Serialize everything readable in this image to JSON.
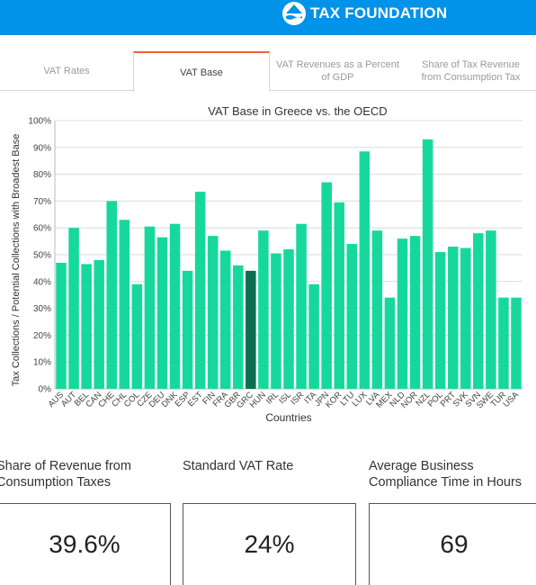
{
  "header": {
    "brand_name": "TAX FOUNDATION",
    "logo_icon": "tax-foundation-logo-icon",
    "background_color": "#0093e9"
  },
  "tabs": [
    {
      "label": "VAT Rates",
      "active": false
    },
    {
      "label": "VAT Base",
      "active": true
    },
    {
      "label": "VAT Revenues as a Percent of GDP",
      "active": false
    },
    {
      "label": "Share of Tax Revenue from Consumption Tax",
      "active": false
    }
  ],
  "chart_data": {
    "type": "bar",
    "title": "VAT Base in Greece vs. the OECD",
    "xlabel": "Countries",
    "ylabel": "Tax Collections / Potential Collections with Broadest Base",
    "ylim": [
      0,
      100
    ],
    "ytick_labels": [
      "0%",
      "10%",
      "20%",
      "30%",
      "40%",
      "50%",
      "60%",
      "70%",
      "80%",
      "90%",
      "100%"
    ],
    "grid": true,
    "bar_color": "#17d89c",
    "highlight_color": "#0d6e4f",
    "highlight_category": "GRC",
    "categories": [
      "AUS",
      "AUT",
      "BEL",
      "CAN",
      "CHE",
      "CHL",
      "COL",
      "CZE",
      "DEU",
      "DNK",
      "ESP",
      "EST",
      "FIN",
      "FRA",
      "GBR",
      "GRC",
      "HUN",
      "IRL",
      "ISL",
      "ISR",
      "ITA",
      "JPN",
      "KOR",
      "LTU",
      "LUX",
      "LVA",
      "MEX",
      "NLD",
      "NOR",
      "NZL",
      "POL",
      "PRT",
      "SVK",
      "SVN",
      "SWE",
      "TUR",
      "USA"
    ],
    "values": [
      47,
      60,
      46.5,
      48,
      70,
      63,
      39,
      60.5,
      56.5,
      61.5,
      44,
      73.5,
      57,
      51.5,
      46,
      44,
      59,
      50.5,
      52,
      61.5,
      39,
      77,
      69.5,
      54,
      88.5,
      59,
      34,
      56,
      57,
      93,
      51,
      53,
      52.5,
      58,
      59,
      34,
      34
    ]
  },
  "stats": [
    {
      "label": "Share of Revenue from Consumption Taxes",
      "value": "39.6%"
    },
    {
      "label": "Standard VAT Rate",
      "value": "24%"
    },
    {
      "label": "Average Business Compliance Time in Hours",
      "value": "69"
    }
  ]
}
